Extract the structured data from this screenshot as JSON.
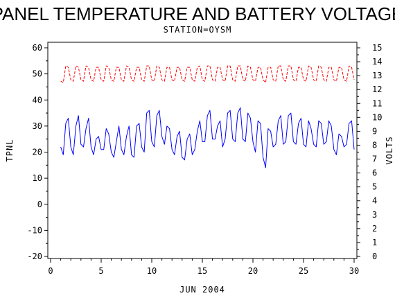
{
  "chart_data": {
    "type": "line",
    "title": "PANEL TEMPERATURE AND BATTERY VOLTAGE",
    "subtitle": "STATION=OYSM",
    "xlabel": "JUN 2004",
    "ylabel_left": "TPNL",
    "ylabel_right": "VOLTS",
    "xlim": [
      0,
      30
    ],
    "ylim_left": [
      -20,
      60
    ],
    "ylim_right": [
      0,
      15
    ],
    "x_ticks": [
      0,
      5,
      10,
      15,
      20,
      25,
      30
    ],
    "y_left_ticks": [
      -20,
      -10,
      0,
      10,
      20,
      30,
      40,
      50,
      60
    ],
    "y_right_ticks": [
      0,
      1,
      2,
      3,
      4,
      5,
      6,
      7,
      8,
      9,
      10,
      11,
      12,
      13,
      14,
      15
    ],
    "series": [
      {
        "name": "",
        "axis": "left",
        "color": "#0000ff",
        "style": "solid",
        "x": [
          1.0,
          1.25,
          1.5,
          1.75,
          2.0,
          2.25,
          2.5,
          2.75,
          3.0,
          3.25,
          3.5,
          3.75,
          4.0,
          4.25,
          4.5,
          4.75,
          5.0,
          5.25,
          5.5,
          5.75,
          6.0,
          6.25,
          6.5,
          6.75,
          7.0,
          7.25,
          7.5,
          7.75,
          8.0,
          8.25,
          8.5,
          8.75,
          9.0,
          9.25,
          9.5,
          9.75,
          10.0,
          10.25,
          10.5,
          10.75,
          11.0,
          11.25,
          11.5,
          11.75,
          12.0,
          12.25,
          12.5,
          12.75,
          13.0,
          13.25,
          13.5,
          13.75,
          14.0,
          14.25,
          14.5,
          14.75,
          15.0,
          15.25,
          15.5,
          15.75,
          16.0,
          16.25,
          16.5,
          16.75,
          17.0,
          17.25,
          17.5,
          17.75,
          18.0,
          18.25,
          18.5,
          18.75,
          19.0,
          19.25,
          19.5,
          19.75,
          20.0,
          20.25,
          20.5,
          20.75,
          21.0,
          21.25,
          21.5,
          21.75,
          22.0,
          22.25,
          22.5,
          22.75,
          23.0,
          23.25,
          23.5,
          23.75,
          24.0,
          24.25,
          24.5,
          24.75,
          25.0,
          25.25,
          25.5,
          25.75,
          26.0,
          26.25,
          26.5,
          26.75,
          27.0,
          27.25,
          27.5,
          27.75,
          28.0,
          28.25,
          28.5,
          28.75,
          29.0,
          29.25,
          29.5,
          29.75,
          30.0
        ],
        "values": [
          22,
          19,
          31,
          33,
          22,
          19,
          30,
          34,
          23,
          22,
          29,
          33,
          22,
          19,
          25,
          26,
          21,
          21,
          29,
          27,
          20,
          18,
          24,
          30,
          21,
          19,
          26,
          30,
          19,
          18,
          30,
          31,
          22,
          20,
          35,
          36,
          24,
          22,
          34,
          36,
          26,
          23,
          30,
          29,
          21,
          19,
          26,
          28,
          18,
          17,
          25,
          27,
          19,
          21,
          28,
          32,
          24,
          24,
          34,
          36,
          25,
          25,
          30,
          32,
          22,
          25,
          35,
          36,
          25,
          24,
          35,
          37,
          25,
          24,
          35,
          33,
          24,
          20,
          32,
          31,
          18,
          14,
          29,
          28,
          22,
          23,
          32,
          34,
          23,
          24,
          34,
          35,
          24,
          23,
          31,
          33,
          23,
          22,
          32,
          29,
          23,
          22,
          32,
          31,
          23,
          24,
          32,
          30,
          21,
          19,
          27,
          26,
          22,
          23,
          31,
          32,
          21
        ],
        "label": ""
      },
      {
        "name": "",
        "axis": "right",
        "color": "#ff0000",
        "style": "dashed",
        "x": [
          1.0,
          1.25,
          1.5,
          1.75,
          2.0,
          2.25,
          2.5,
          2.75,
          3.0,
          3.25,
          3.5,
          3.75,
          4.0,
          4.25,
          4.5,
          4.75,
          5.0,
          5.25,
          5.5,
          5.75,
          6.0,
          6.25,
          6.5,
          6.75,
          7.0,
          7.25,
          7.5,
          7.75,
          8.0,
          8.25,
          8.5,
          8.75,
          9.0,
          9.25,
          9.5,
          9.75,
          10.0,
          10.25,
          10.5,
          10.75,
          11.0,
          11.25,
          11.5,
          11.75,
          12.0,
          12.25,
          12.5,
          12.75,
          13.0,
          13.25,
          13.5,
          13.75,
          14.0,
          14.25,
          14.5,
          14.75,
          15.0,
          15.25,
          15.5,
          15.75,
          16.0,
          16.25,
          16.5,
          16.75,
          17.0,
          17.25,
          17.5,
          17.75,
          18.0,
          18.25,
          18.5,
          18.75,
          19.0,
          19.25,
          19.5,
          19.75,
          20.0,
          20.25,
          20.5,
          20.75,
          21.0,
          21.25,
          21.5,
          21.75,
          22.0,
          22.25,
          22.5,
          22.75,
          23.0,
          23.25,
          23.5,
          23.75,
          24.0,
          24.25,
          24.5,
          24.75,
          25.0,
          25.25,
          25.5,
          25.75,
          26.0,
          26.25,
          26.5,
          26.75,
          27.0,
          27.25,
          27.5,
          27.75,
          28.0,
          28.25,
          28.5,
          28.75,
          29.0,
          29.25,
          29.5,
          29.75,
          30.0
        ],
        "values": [
          12.6,
          12.5,
          13.7,
          13.6,
          12.7,
          12.6,
          13.7,
          13.6,
          12.7,
          12.6,
          13.7,
          13.6,
          12.7,
          12.6,
          13.6,
          13.6,
          12.7,
          12.6,
          13.7,
          13.6,
          12.7,
          12.6,
          13.6,
          13.6,
          12.7,
          12.6,
          13.7,
          13.6,
          12.7,
          12.6,
          13.6,
          13.6,
          12.7,
          12.6,
          13.7,
          13.7,
          12.7,
          12.6,
          13.7,
          13.6,
          12.7,
          12.6,
          13.6,
          13.6,
          12.7,
          12.6,
          13.6,
          13.6,
          12.7,
          12.6,
          13.6,
          13.6,
          12.7,
          12.6,
          13.6,
          13.7,
          12.7,
          12.6,
          13.7,
          13.7,
          12.7,
          12.6,
          13.6,
          13.6,
          12.7,
          12.6,
          13.7,
          13.7,
          12.7,
          12.6,
          13.7,
          13.7,
          12.7,
          12.6,
          13.7,
          13.6,
          12.7,
          12.6,
          13.6,
          13.6,
          12.7,
          12.5,
          13.6,
          13.6,
          12.7,
          12.6,
          13.7,
          13.7,
          12.7,
          12.6,
          13.7,
          13.7,
          12.7,
          12.6,
          13.6,
          13.6,
          12.7,
          12.6,
          13.7,
          13.6,
          12.7,
          12.6,
          13.7,
          13.6,
          12.7,
          12.6,
          13.6,
          13.6,
          12.7,
          12.6,
          13.6,
          13.6,
          12.7,
          12.6,
          13.7,
          13.6,
          12.7
        ],
        "label": ""
      }
    ],
    "grid": false,
    "legend": "none"
  }
}
